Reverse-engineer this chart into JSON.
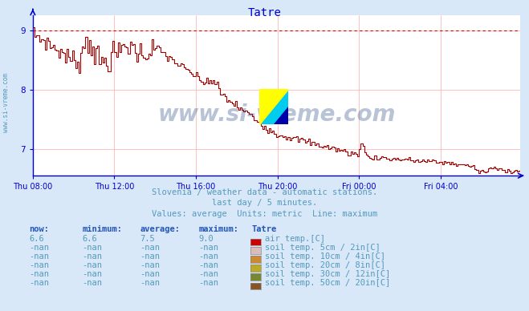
{
  "title": "Tatre",
  "bg_color": "#d8e8f8",
  "plot_bg_color": "#ffffff",
  "line_color": "#aa0000",
  "max_line_color": "#dd0000",
  "grid_color": "#ffaaaa",
  "axis_color": "#0000cc",
  "text_color": "#5599bb",
  "ylim_low": 6.55,
  "ylim_high": 9.25,
  "yticks": [
    7,
    8,
    9
  ],
  "x_labels": [
    "Thu 08:00",
    "Thu 12:00",
    "Thu 16:00",
    "Thu 20:00",
    "Fri 00:00",
    "Fri 04:00"
  ],
  "x_tick_indices": [
    0,
    48,
    96,
    144,
    192,
    240
  ],
  "subtitle1": "Slovenia / weather data - automatic stations.",
  "subtitle2": "last day / 5 minutes.",
  "subtitle3": "Values: average  Units: metric  Line: maximum",
  "table_headers": [
    "now:",
    "minimum:",
    "average:",
    "maximum:",
    "Tatre"
  ],
  "table_rows": [
    [
      "6.6",
      "6.6",
      "7.5",
      "9.0",
      "#cc0000",
      "air temp.[C]"
    ],
    [
      "-nan",
      "-nan",
      "-nan",
      "-nan",
      "#ddbbbb",
      "soil temp. 5cm / 2in[C]"
    ],
    [
      "-nan",
      "-nan",
      "-nan",
      "-nan",
      "#cc8833",
      "soil temp. 10cm / 4in[C]"
    ],
    [
      "-nan",
      "-nan",
      "-nan",
      "-nan",
      "#bbaa22",
      "soil temp. 20cm / 8in[C]"
    ],
    [
      "-nan",
      "-nan",
      "-nan",
      "-nan",
      "#778833",
      "soil temp. 30cm / 12in[C]"
    ],
    [
      "-nan",
      "-nan",
      "-nan",
      "-nan",
      "#885522",
      "soil temp. 50cm / 20in[C]"
    ]
  ],
  "watermark": "www.si-vreme.com",
  "watermark_color": "#1a3a7a",
  "max_value": 9.0,
  "n_points": 288
}
